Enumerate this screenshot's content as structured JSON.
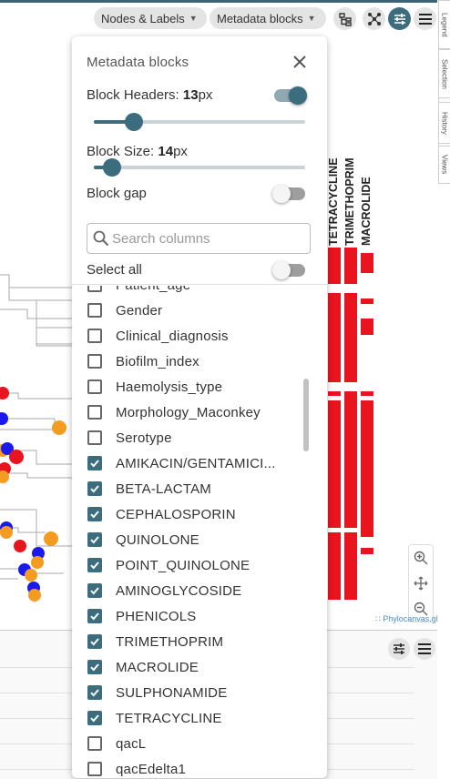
{
  "toolbar": {
    "nodes_labels": "Nodes & Labels",
    "metadata_blocks": "Metadata blocks"
  },
  "side_tabs": [
    "Legend",
    "Selection",
    "History",
    "Views"
  ],
  "metadata_headers": [
    "TETRACYCLINE",
    "TRIMETHOPRIM",
    "MACROLIDE"
  ],
  "brand": "Phylocanvas.gl",
  "menu": {
    "title": "Metadata blocks",
    "block_headers": {
      "label": "Block Headers: ",
      "value": "13",
      "unit": "px",
      "toggle_on": true,
      "slider_fraction": 0.18
    },
    "block_size": {
      "label": "Block Size: ",
      "value": "14",
      "unit": "px",
      "slider_fraction": 0.08
    },
    "block_gap": {
      "label": "Block gap",
      "toggle_on": false
    },
    "search": {
      "placeholder": "Search columns"
    },
    "select_all": {
      "label": "Select all",
      "toggle_on": false
    },
    "columns": [
      {
        "label": "Patient_age",
        "checked": false
      },
      {
        "label": "Gender",
        "checked": false
      },
      {
        "label": "Clinical_diagnosis",
        "checked": false
      },
      {
        "label": "Biofilm_index",
        "checked": false
      },
      {
        "label": "Haemolysis_type",
        "checked": false
      },
      {
        "label": "Morphology_Maconkey",
        "checked": false
      },
      {
        "label": "Serotype",
        "checked": false
      },
      {
        "label": "AMIKACIN/GENTAMICI...",
        "checked": true
      },
      {
        "label": "BETA-LACTAM",
        "checked": true
      },
      {
        "label": "CEPHALOSPORIN",
        "checked": true
      },
      {
        "label": "QUINOLONE",
        "checked": true
      },
      {
        "label": "POINT_QUINOLONE",
        "checked": true
      },
      {
        "label": "AMINOGLYCOSIDE",
        "checked": true
      },
      {
        "label": "PHENICOLS",
        "checked": true
      },
      {
        "label": "TRIMETHOPRIM",
        "checked": true
      },
      {
        "label": "MACROLIDE",
        "checked": true
      },
      {
        "label": "SULPHONAMIDE",
        "checked": true
      },
      {
        "label": "TETRACYCLINE",
        "checked": true
      },
      {
        "label": "qacL",
        "checked": false
      },
      {
        "label": "qacEdelta1",
        "checked": false
      }
    ]
  },
  "colors": {
    "accent": "#3b6d7e",
    "metadata_red": "#e8141e",
    "node_blue": "#1a1aee",
    "node_orange": "#f39c21",
    "node_red": "#e8141e"
  }
}
